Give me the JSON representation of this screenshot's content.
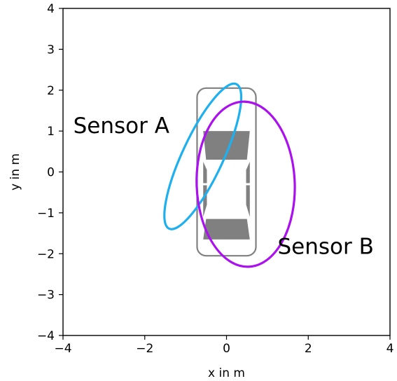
{
  "chart_data": {
    "type": "scatter",
    "title": "",
    "xlabel": "x in m",
    "ylabel": "y in m",
    "xlim": [
      -4,
      4
    ],
    "ylim": [
      -4,
      4
    ],
    "xticks": [
      -4,
      -2,
      0,
      2,
      4
    ],
    "yticks": [
      -4,
      -3,
      -2,
      -1,
      0,
      1,
      2,
      3,
      4
    ],
    "xtick_labels": [
      "−4",
      "−2",
      "0",
      "2",
      "4"
    ],
    "ytick_labels": [
      "−4",
      "−3",
      "−2",
      "−1",
      "0",
      "1",
      "2",
      "3",
      "4"
    ],
    "grid": false,
    "legend": "none",
    "vehicle": {
      "outline": {
        "x_min": -0.72,
        "x_max": 0.72,
        "y_min": -2.05,
        "y_max": 2.05,
        "corner_radius": 0.22
      },
      "color": "#808080"
    },
    "ellipses": [
      {
        "name": "Sensor A",
        "center": [
          -0.58,
          0.38
        ],
        "semi_major": 1.95,
        "semi_minor": 0.5,
        "angle_deg": 65,
        "color": "#1eb0ee"
      },
      {
        "name": "Sensor B",
        "center": [
          0.47,
          -0.3
        ],
        "semi_major": 2.02,
        "semi_minor": 1.2,
        "angle_deg": 92,
        "color": "#aa11ee"
      }
    ],
    "annotations": [
      {
        "text": "Sensor A",
        "x": -3.75,
        "y": 0.95
      },
      {
        "text": "Sensor B",
        "x": 1.25,
        "y": -2.0
      }
    ]
  }
}
